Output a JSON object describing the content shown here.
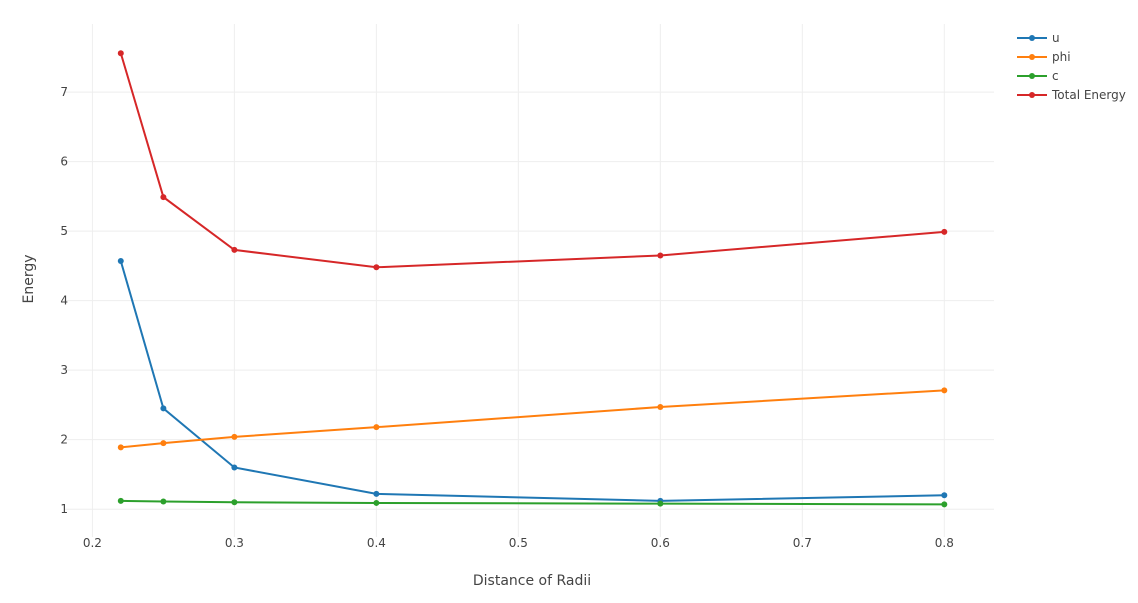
{
  "chart_data": {
    "type": "line",
    "title": "",
    "xlabel": "Distance of Radii",
    "ylabel": "Energy",
    "xlim": [
      0.18,
      0.835
    ],
    "ylim": [
      0.6,
      7.98
    ],
    "xticks": [
      0.2,
      0.3,
      0.4,
      0.5,
      0.6,
      0.7,
      0.8
    ],
    "xtick_labels": [
      "0.2",
      "0.3",
      "0.4",
      "0.5",
      "0.6",
      "0.7",
      "0.8"
    ],
    "yticks": [
      1,
      2,
      3,
      4,
      5,
      6,
      7
    ],
    "ytick_labels": [
      "1",
      "2",
      "3",
      "4",
      "5",
      "6",
      "7"
    ],
    "grid": true,
    "legend_position": "top-right",
    "x": [
      0.22,
      0.25,
      0.3,
      0.4,
      0.6,
      0.8
    ],
    "series": [
      {
        "name": "u",
        "color": "#1f77b4",
        "values": [
          4.57,
          2.45,
          1.6,
          1.22,
          1.12,
          1.2
        ]
      },
      {
        "name": "phi",
        "color": "#ff7f0e",
        "values": [
          1.89,
          1.95,
          2.04,
          2.18,
          2.47,
          2.71
        ]
      },
      {
        "name": "c",
        "color": "#2ca02c",
        "values": [
          1.12,
          1.11,
          1.1,
          1.09,
          1.08,
          1.07
        ]
      },
      {
        "name": "Total Energy",
        "color": "#d62728",
        "values": [
          7.56,
          5.49,
          4.73,
          4.48,
          4.65,
          4.99
        ]
      }
    ]
  }
}
